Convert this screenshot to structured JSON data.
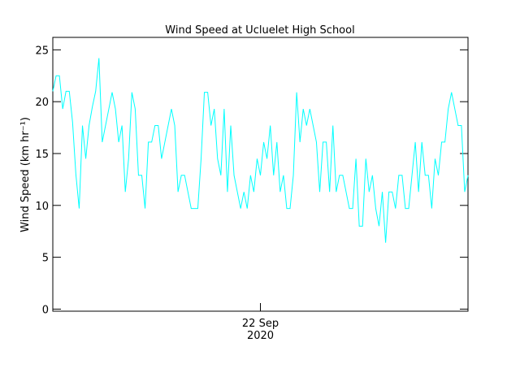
{
  "chart_data": {
    "type": "line",
    "title": "Wind Speed at Ucluelet High School",
    "y_label": "Wind Speed (km hr⁻¹)",
    "categories": [
      null,
      null,
      null,
      null,
      null,
      null,
      null,
      null,
      null,
      null,
      null,
      null,
      null,
      null,
      null,
      null,
      null,
      null,
      null,
      null,
      null,
      null,
      null,
      null,
      null,
      null,
      null,
      null,
      null,
      null,
      null,
      null,
      null,
      null,
      null,
      null,
      null,
      null,
      null,
      null,
      null,
      null,
      null,
      null,
      null,
      null,
      null,
      null,
      null,
      null,
      null,
      null,
      null,
      null,
      null,
      null,
      null,
      null,
      null,
      null,
      null,
      null,
      null,
      "22 Sep\n2020",
      null,
      null,
      null,
      null,
      null,
      null,
      null,
      null,
      null,
      null,
      null,
      null,
      null,
      null,
      null,
      null,
      null,
      null,
      null,
      null,
      null,
      null,
      null,
      null,
      null,
      null,
      null,
      null,
      null,
      null,
      null,
      null,
      null,
      null,
      null,
      null,
      null,
      null,
      null,
      null,
      null,
      null,
      null,
      null,
      null,
      null,
      null,
      null,
      null,
      null,
      null,
      null,
      null,
      null,
      null,
      null,
      null,
      null,
      null,
      null,
      null,
      null,
      null
    ],
    "series": [
      {
        "name": "Wind Speed",
        "color": "#00ffff",
        "values": [
          21,
          22.5,
          22.5,
          19.3,
          21,
          21,
          18,
          13,
          9.7,
          17.7,
          14.5,
          17.7,
          19.5,
          21,
          24.2,
          16.1,
          17.7,
          19.3,
          20.9,
          19.3,
          16.1,
          17.7,
          11.3,
          14.5,
          20.9,
          19.3,
          12.9,
          12.9,
          9.7,
          16.1,
          16.1,
          17.7,
          17.7,
          14.5,
          16.1,
          17.7,
          19.3,
          17.7,
          11.3,
          12.9,
          12.9,
          11.3,
          9.7,
          9.7,
          9.7,
          14.5,
          20.9,
          20.9,
          17.7,
          19.3,
          14.5,
          12.9,
          19.3,
          11.3,
          17.7,
          12.9,
          11.3,
          9.7,
          11.3,
          9.7,
          12.9,
          11.3,
          14.5,
          12.9,
          16.1,
          14.5,
          17.7,
          12.9,
          16.1,
          11.3,
          12.9,
          9.7,
          9.7,
          12.9,
          20.9,
          16.1,
          19.3,
          17.7,
          19.3,
          17.7,
          16.1,
          11.3,
          16.1,
          16.1,
          11.3,
          17.7,
          11.3,
          12.9,
          12.9,
          11.3,
          9.7,
          9.7,
          14.5,
          8.0,
          8.0,
          14.5,
          11.3,
          12.9,
          9.7,
          8.0,
          11.3,
          6.4,
          11.3,
          11.3,
          9.7,
          12.9,
          12.9,
          9.7,
          9.7,
          12.9,
          16.1,
          11.3,
          16.1,
          12.9,
          12.9,
          9.7,
          14.5,
          12.9,
          16.1,
          16.1,
          19.3,
          20.9,
          19.3,
          17.7,
          17.7,
          11.3,
          12.9
        ]
      }
    ],
    "ylim": [
      -0.2,
      26.2
    ],
    "yticks": [
      0,
      5,
      10,
      15,
      20,
      25
    ]
  }
}
